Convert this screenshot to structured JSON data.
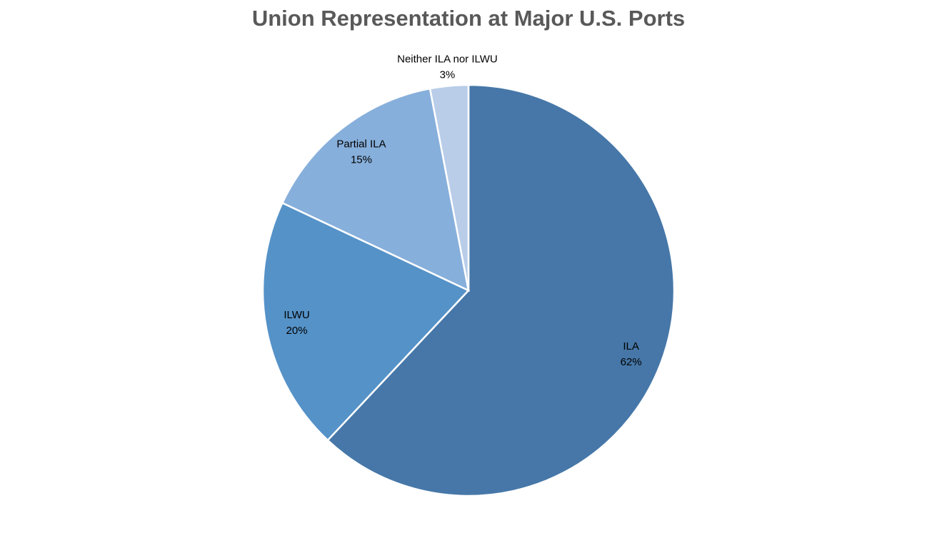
{
  "chart_data": {
    "type": "pie",
    "title": "Union Representation at Major U.S. Ports",
    "categories": [
      "ILA",
      "ILWU",
      "Partial ILA",
      "Neither ILA nor ILWU"
    ],
    "values": [
      62,
      20,
      15,
      3
    ],
    "value_labels": [
      "62%",
      "20%",
      "15%",
      "3%"
    ],
    "colors": [
      "#4677a8",
      "#5592c8",
      "#87afdb",
      "#b9cde9"
    ]
  }
}
